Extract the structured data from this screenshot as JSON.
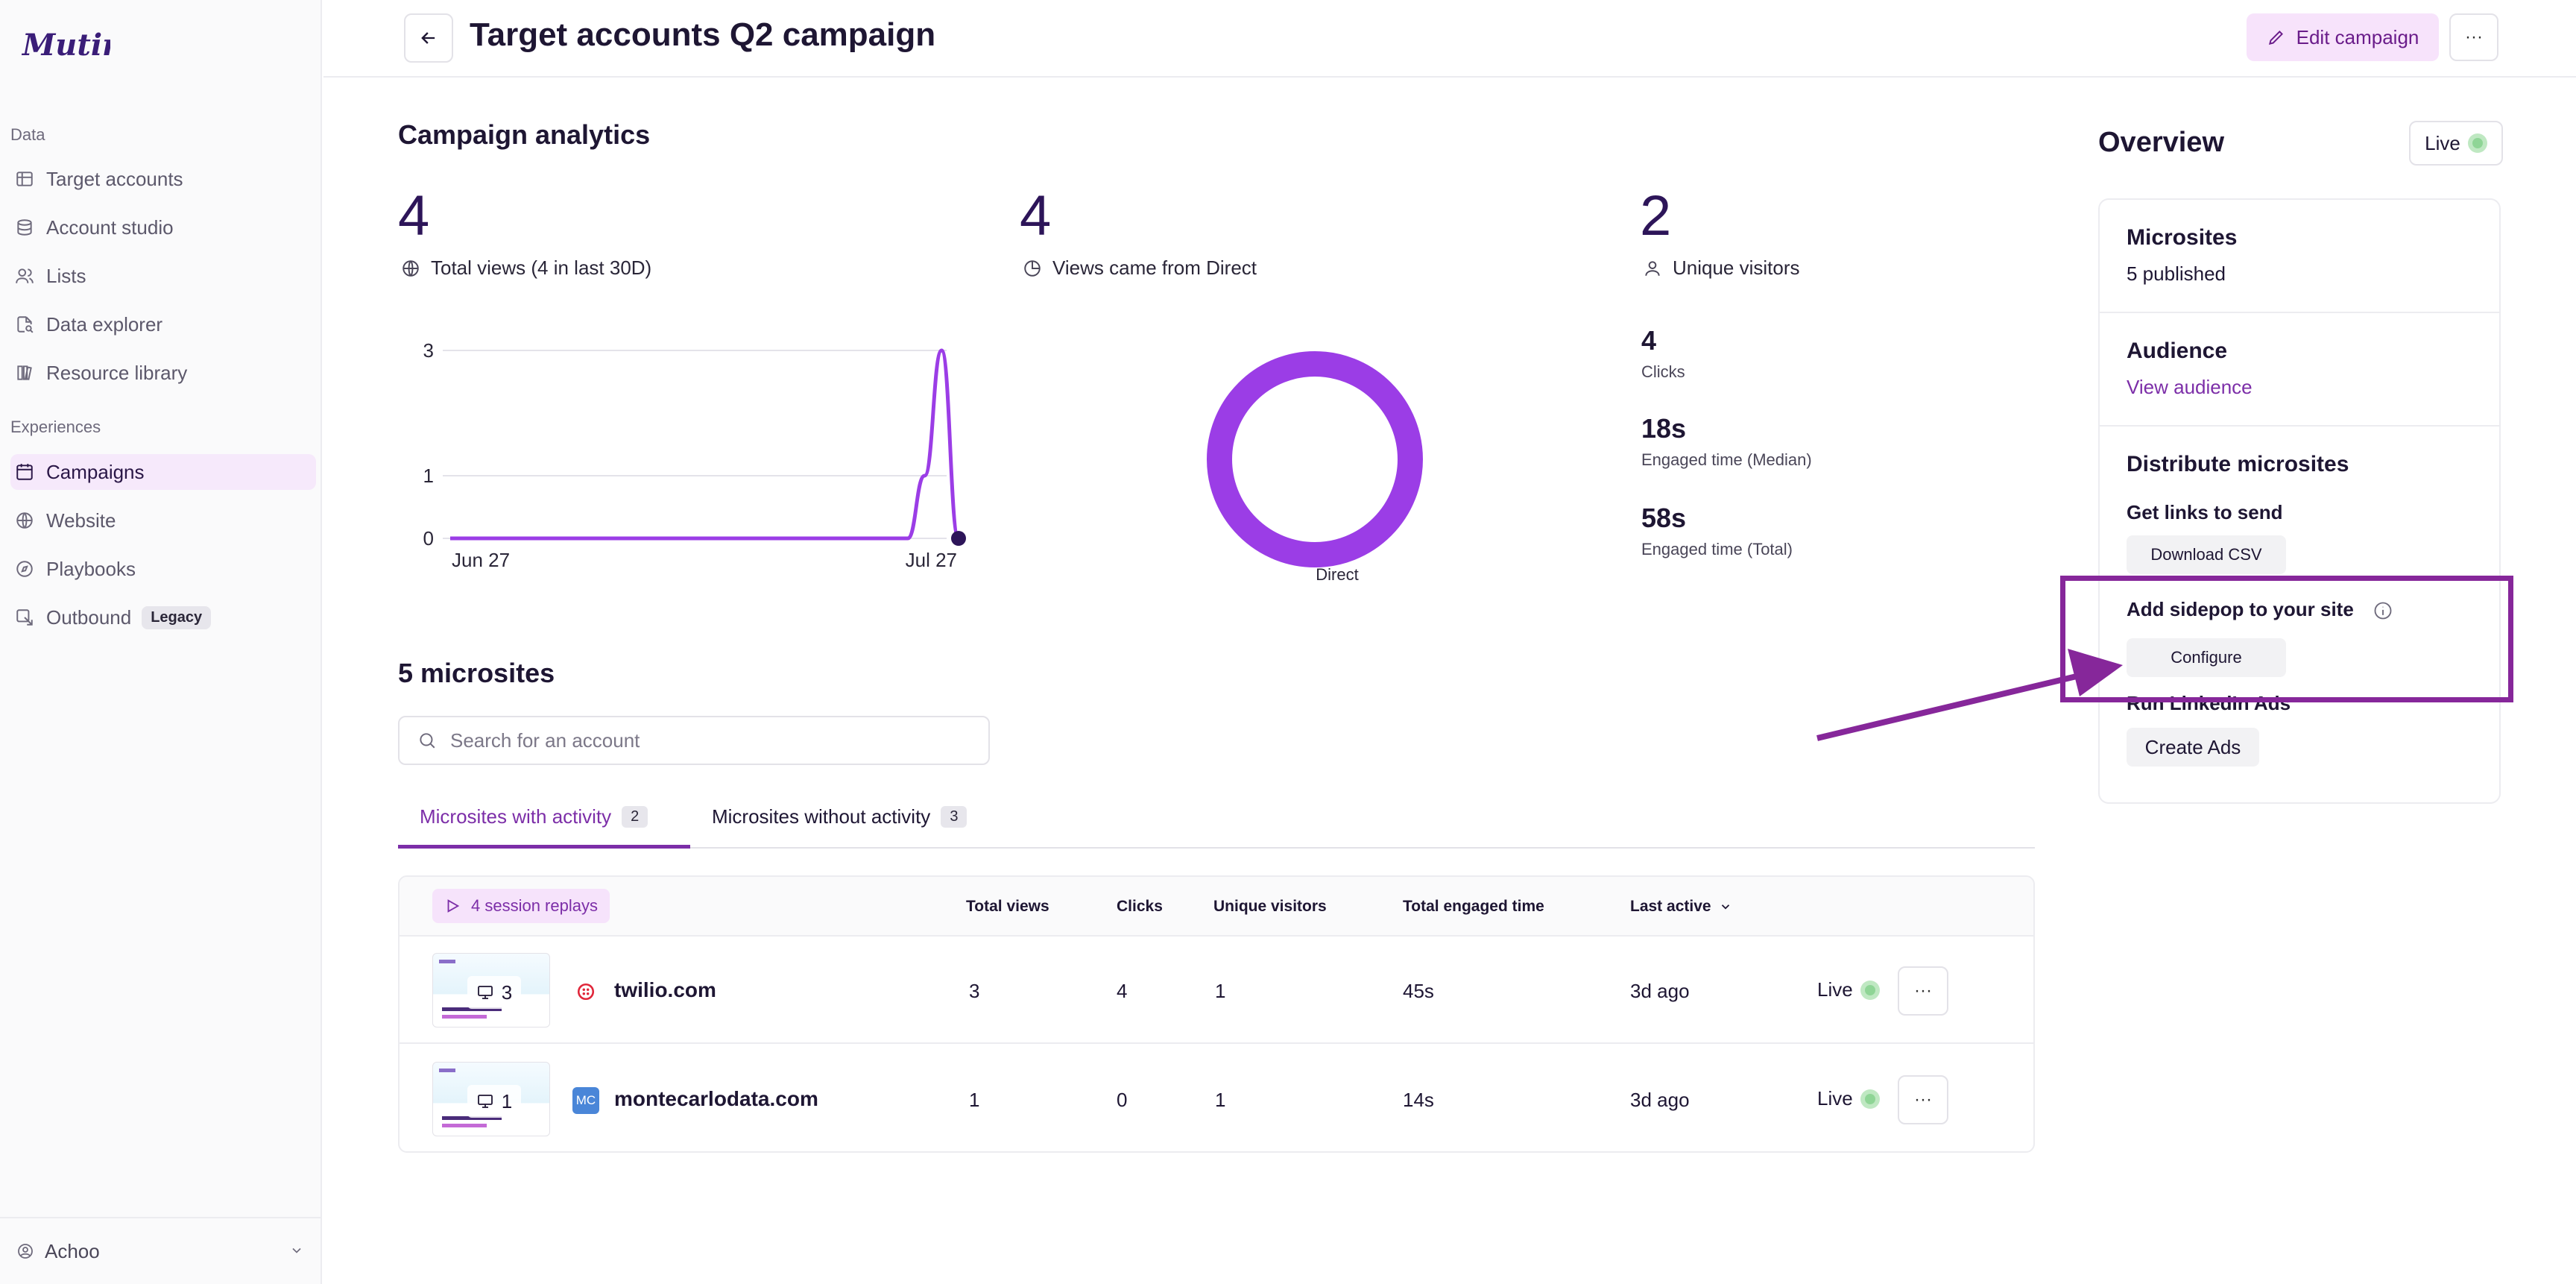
{
  "app": {
    "brand": "Mutiny"
  },
  "sidebar": {
    "sections": [
      {
        "label": "Data"
      },
      {
        "label": "Experiences"
      }
    ],
    "items": [
      {
        "label": "Target accounts",
        "icon": "target-accounts-icon"
      },
      {
        "label": "Account studio",
        "icon": "database-icon"
      },
      {
        "label": "Lists",
        "icon": "users-icon"
      },
      {
        "label": "Data explorer",
        "icon": "file-search-icon"
      },
      {
        "label": "Resource library",
        "icon": "library-icon"
      },
      {
        "label": "Campaigns",
        "icon": "calendar-icon",
        "active": true
      },
      {
        "label": "Website",
        "icon": "globe-icon"
      },
      {
        "label": "Playbooks",
        "icon": "compass-icon"
      },
      {
        "label": "Outbound",
        "icon": "outbound-icon",
        "badge": "Legacy"
      }
    ],
    "footer": {
      "user": "Achoo"
    }
  },
  "header": {
    "title": "Target accounts Q2 campaign",
    "edit_label": "Edit campaign",
    "more_label": "···"
  },
  "analytics": {
    "title": "Campaign analytics",
    "stats": [
      {
        "value": "4",
        "label": "Total views (4 in last 30D)",
        "icon": "globe-icon"
      },
      {
        "value": "4",
        "label": "Views came from Direct",
        "icon": "pie-icon"
      },
      {
        "value": "2",
        "label": "Unique visitors",
        "icon": "user-icon"
      }
    ],
    "metrics": [
      {
        "value": "4",
        "label": "Clicks"
      },
      {
        "value": "18s",
        "label": "Engaged time (Median)"
      },
      {
        "value": "58s",
        "label": "Engaged time (Total)"
      }
    ],
    "donut_label": "Direct"
  },
  "chart_data": [
    {
      "type": "line",
      "x": [
        "Jun 27",
        "",
        "",
        "",
        "",
        "",
        "",
        "",
        "",
        "",
        "",
        "",
        "",
        "",
        "",
        "",
        "",
        "",
        "",
        "",
        "",
        "",
        "",
        "",
        "",
        "",
        "",
        "",
        "",
        "",
        "Jul 27"
      ],
      "x_tick_labels": [
        "Jun 27",
        "Jul 27"
      ],
      "y_tick_labels": [
        "0",
        "1",
        "3"
      ],
      "series": [
        {
          "values": [
            0,
            0,
            0,
            0,
            0,
            0,
            0,
            0,
            0,
            0,
            0,
            0,
            0,
            0,
            0,
            0,
            0,
            0,
            0,
            0,
            0,
            0,
            0,
            0,
            0,
            0,
            0,
            0,
            1,
            3,
            0
          ]
        }
      ],
      "ylim": [
        0,
        3
      ],
      "grid": true,
      "color": "#9b3de6"
    },
    {
      "type": "pie",
      "categories": [
        "Direct"
      ],
      "values": [
        4
      ],
      "color": "#9b3de6"
    }
  ],
  "overview": {
    "title": "Overview",
    "status": "Live",
    "microsites": {
      "title": "Microsites",
      "sub": "5 published"
    },
    "audience": {
      "title": "Audience",
      "link": "View audience"
    },
    "distribute": {
      "title": "Distribute microsites",
      "links_title": "Get links to send",
      "download_label": "Download CSV",
      "sidepop_title": "Add sidepop to your site",
      "configure_label": "Configure",
      "linkedin_title": "Run LinkedIn Ads",
      "create_ads_label": "Create Ads"
    }
  },
  "microsites": {
    "title": "5 microsites",
    "search_placeholder": "Search for an account",
    "tabs": [
      {
        "label": "Microsites with activity",
        "count": "2",
        "active": true
      },
      {
        "label": "Microsites without activity",
        "count": "3"
      }
    ],
    "replays_label": "4 session replays",
    "columns": [
      "Total views",
      "Clicks",
      "Unique visitors",
      "Total engaged time",
      "Last active"
    ],
    "rows": [
      {
        "thumb_count": "3",
        "domain": "twilio.com",
        "favicon": "twilio-icon",
        "views": "3",
        "clicks": "4",
        "visitors": "1",
        "engaged": "45s",
        "last_active": "3d ago",
        "status": "Live"
      },
      {
        "thumb_count": "1",
        "domain": "montecarlodata.com",
        "favicon": "MC",
        "views": "1",
        "clicks": "0",
        "visitors": "1",
        "engaged": "14s",
        "last_active": "3d ago",
        "status": "Live"
      }
    ]
  },
  "colors": {
    "accent": "#7c2ea8",
    "chart": "#9b3de6",
    "annotation": "#86279a",
    "live": "#8fd596"
  }
}
